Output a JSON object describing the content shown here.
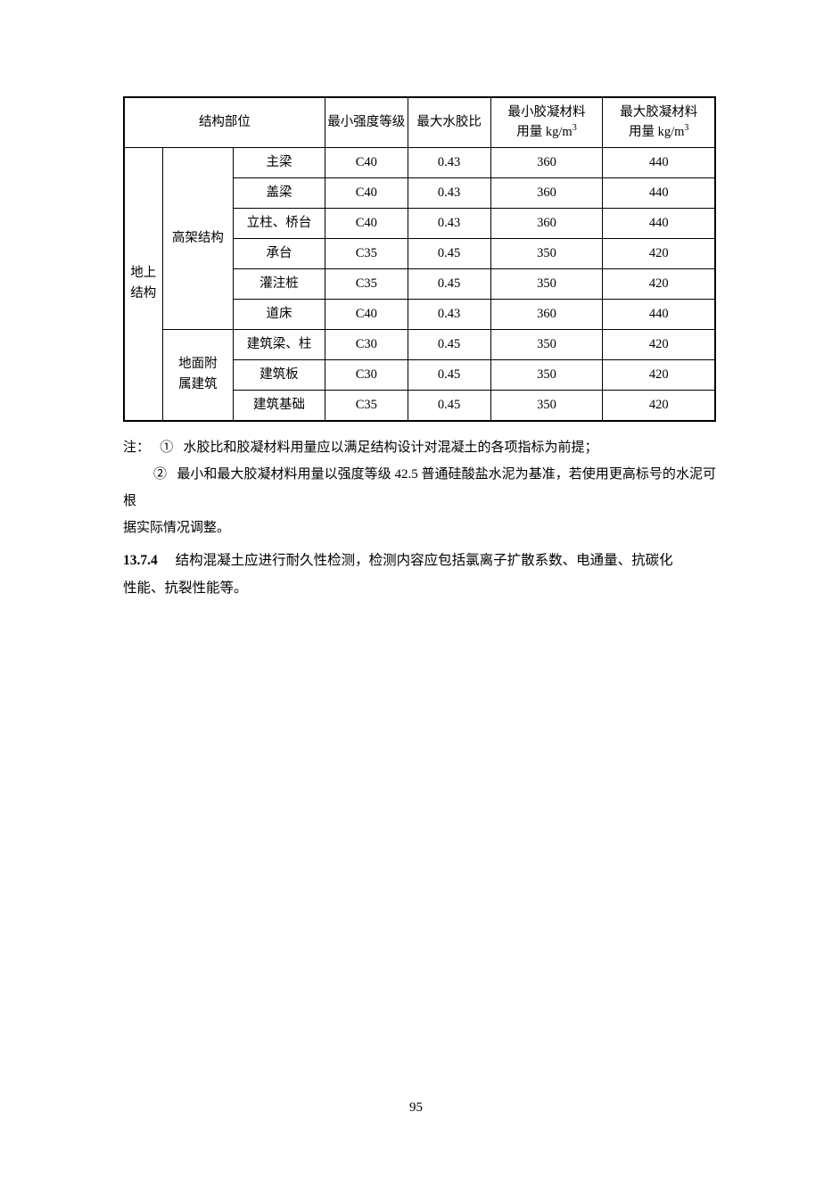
{
  "table": {
    "headers": {
      "h1": "结构部位",
      "h2": "最小强度等级",
      "h3": "最大水胶比",
      "h4_l1": "最小胶凝材料",
      "h4_l2": "用量 kg/m",
      "h5_l1": "最大胶凝材料",
      "h5_l2": "用量 kg/m"
    },
    "rowgroup1_l1": "地上",
    "rowgroup1_l2": "结构",
    "subgroup_a": "高架结构",
    "subgroup_b_l1": "地面附",
    "subgroup_b_l2": "属建筑",
    "rows": [
      {
        "c": "主梁",
        "d": "C40",
        "e": "0.43",
        "f": "360",
        "g": "440"
      },
      {
        "c": "盖梁",
        "d": "C40",
        "e": "0.43",
        "f": "360",
        "g": "440"
      },
      {
        "c": "立柱、桥台",
        "d": "C40",
        "e": "0.43",
        "f": "360",
        "g": "440"
      },
      {
        "c": "承台",
        "d": "C35",
        "e": "0.45",
        "f": "350",
        "g": "420"
      },
      {
        "c": "灌注桩",
        "d": "C35",
        "e": "0.45",
        "f": "350",
        "g": "420"
      },
      {
        "c": "道床",
        "d": "C40",
        "e": "0.43",
        "f": "360",
        "g": "440"
      },
      {
        "c": "建筑梁、柱",
        "d": "C30",
        "e": "0.45",
        "f": "350",
        "g": "420"
      },
      {
        "c": "建筑板",
        "d": "C30",
        "e": "0.45",
        "f": "350",
        "g": "420"
      },
      {
        "c": "建筑基础",
        "d": "C35",
        "e": "0.45",
        "f": "350",
        "g": "420"
      }
    ]
  },
  "notes": {
    "label": "注：",
    "mark1": "①",
    "text1": "水胶比和胶凝材料用量应以满足结构设计对混凝土的各项指标为前提；",
    "mark2": "②",
    "text2a": "最小和最大胶凝材料用量以强度等级 42.5 普通硅酸盐水泥为基准，若使用更高标号的水泥可根",
    "text2b": "据实际情况调整。"
  },
  "section": {
    "num": "13.7.4",
    "line1": "结构混凝土应进行耐久性检测，检测内容应包括氯离子扩散系数、电通量、抗碳化",
    "line2": "性能、抗裂性能等。"
  },
  "pageNumber": "95"
}
